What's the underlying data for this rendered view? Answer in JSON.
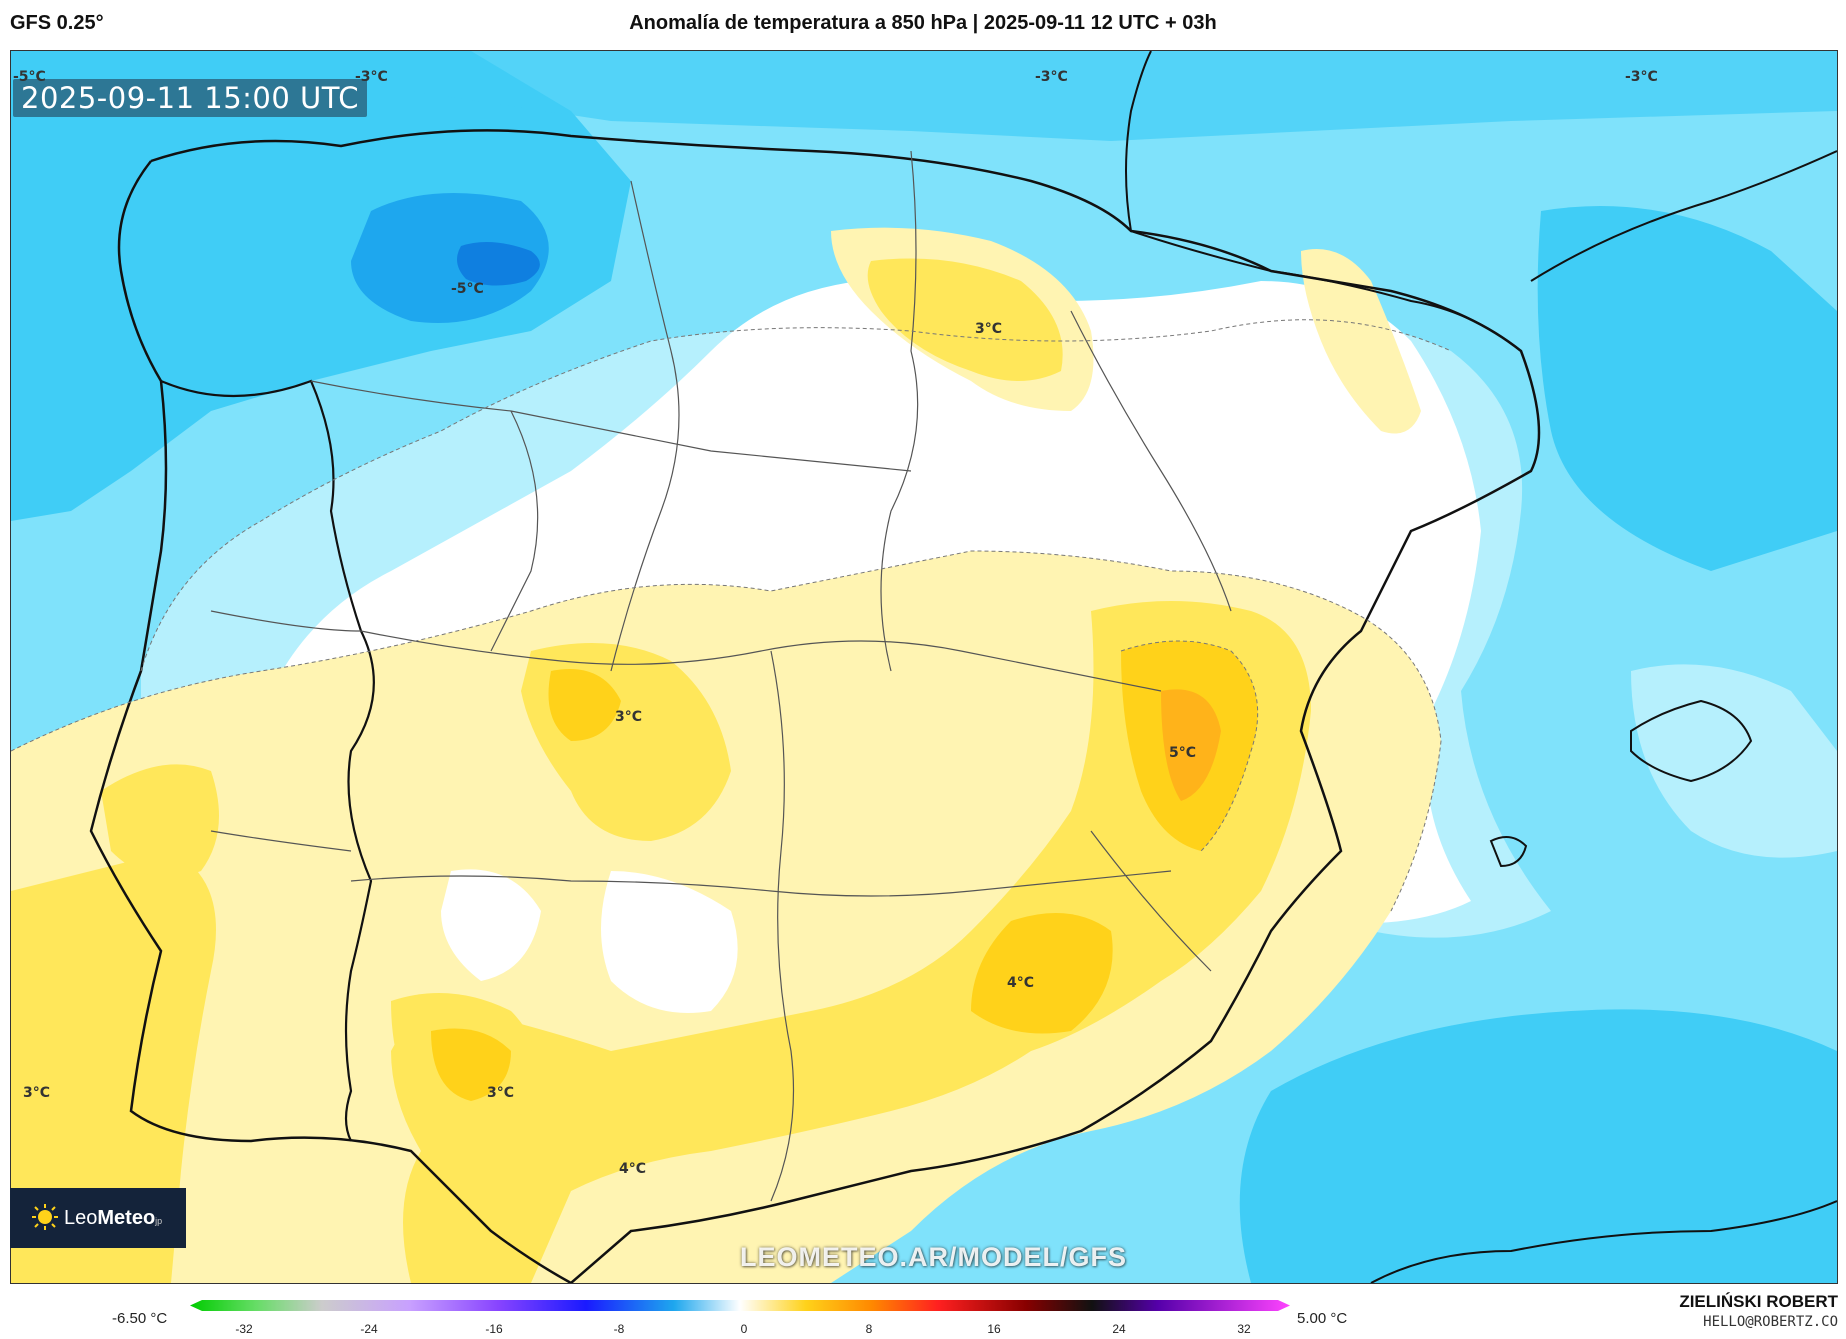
{
  "header": {
    "model": "GFS 0.25°",
    "title": "Anomalía de temperatura a 850 hPa | 2025-09-11 12 UTC + 03h"
  },
  "map": {
    "valid_time": "2025-09-11 15:00 UTC",
    "labels": [
      {
        "text": "-3°C",
        "id": "nw-top"
      },
      {
        "text": "-3°C",
        "id": "n-top"
      },
      {
        "text": "-3°C",
        "id": "ne-top"
      },
      {
        "text": "-5°C",
        "id": "nw-cold-core"
      },
      {
        "text": "-5°C",
        "id": "nw-corner"
      },
      {
        "text": "3°C",
        "id": "ebro-north"
      },
      {
        "text": "3°C",
        "id": "center-west"
      },
      {
        "text": "5°C",
        "id": "east-hot-core"
      },
      {
        "text": "4°C",
        "id": "southeast"
      },
      {
        "text": "3°C",
        "id": "southwest"
      },
      {
        "text": "3°C",
        "id": "atlantic"
      },
      {
        "text": "4°C",
        "id": "andalusia"
      }
    ],
    "fill_colors": {
      "deep_cold": "#1ea7ee",
      "cold": "#40cdf6",
      "cool": "#7fe2fb",
      "light_cool": "#b6f0fd",
      "neutral": "#ffffff",
      "light_warm": "#fff4b2",
      "warm": "#ffe75a",
      "hot": "#ffd21a",
      "very_hot": "#ffb31a"
    }
  },
  "branding": {
    "logo_text_a": "Leo",
    "logo_text_b": "Meteo",
    "logo_suffix": "jp",
    "watermark": "LEOMETEO.AR/MODEL/GFS"
  },
  "legend": {
    "min_label": "-6.50 °C",
    "max_label": "5.00 °C",
    "ticks": [
      "-32",
      "-24",
      "-16",
      "-8",
      "0",
      "8",
      "16",
      "24",
      "32"
    ]
  },
  "footer": {
    "author": "ZIELIŃSKI ROBERT",
    "email": "HELLO@ROBERTZ.CO"
  }
}
